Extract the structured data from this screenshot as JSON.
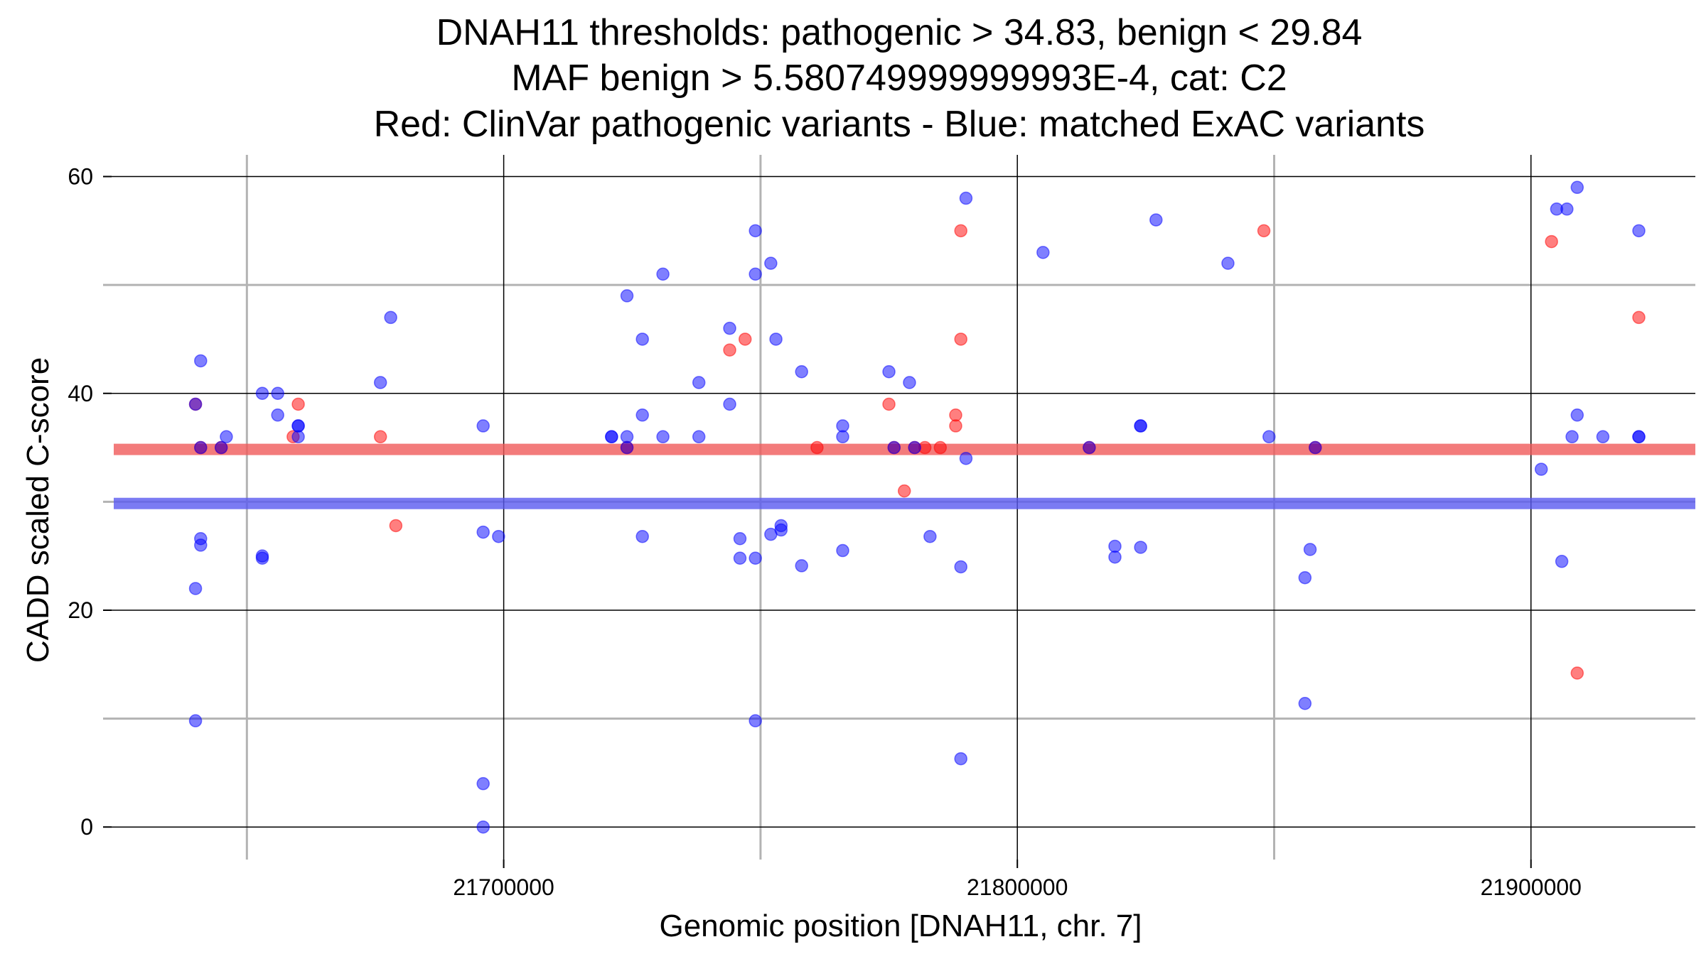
{
  "chart_data": {
    "type": "scatter",
    "title_lines": [
      "DNAH11 thresholds: pathogenic > 34.83, benign < 29.84",
      "MAF benign > 5.580749999999993E-4, cat: C2",
      "Red: ClinVar pathogenic variants - Blue: matched ExAC variants"
    ],
    "xlabel": "Genomic position [DNAH11, chr. 7]",
    "ylabel": "CADD scaled C-score",
    "xlim": [
      21622000,
      21932000
    ],
    "ylim": [
      -3,
      62
    ],
    "x_major_ticks": [
      21700000,
      21800000,
      21900000
    ],
    "x_tick_labels": [
      "21700000",
      "21800000",
      "21900000"
    ],
    "x_minor_ticks": [
      21650000,
      21750000,
      21850000
    ],
    "y_major_ticks": [
      0,
      20,
      40,
      60
    ],
    "y_tick_labels": [
      "0",
      "20",
      "40",
      "60"
    ],
    "y_minor_ticks": [
      10,
      30,
      50
    ],
    "grid": true,
    "thresholds": [
      {
        "label": "pathogenic",
        "value": 34.83,
        "color": "#f05a5a"
      },
      {
        "label": "benign",
        "value": 29.84,
        "color": "#5a5af0"
      }
    ],
    "series": [
      {
        "name": "ClinVar pathogenic variants",
        "color": "#ff0000",
        "points": [
          [
            21640000,
            39
          ],
          [
            21641000,
            35
          ],
          [
            21645000,
            35
          ],
          [
            21659000,
            36
          ],
          [
            21660000,
            39
          ],
          [
            21676000,
            36
          ],
          [
            21679000,
            27.8
          ],
          [
            21724000,
            35
          ],
          [
            21744000,
            44
          ],
          [
            21747000,
            45
          ],
          [
            21761000,
            35
          ],
          [
            21775000,
            39
          ],
          [
            21776000,
            35
          ],
          [
            21778000,
            31
          ],
          [
            21780000,
            35
          ],
          [
            21782000,
            35
          ],
          [
            21785000,
            35
          ],
          [
            21788000,
            38
          ],
          [
            21788000,
            37
          ],
          [
            21789000,
            55
          ],
          [
            21789000,
            45
          ],
          [
            21814000,
            35
          ],
          [
            21848000,
            55
          ],
          [
            21858000,
            35
          ],
          [
            21904000,
            54
          ],
          [
            21909000,
            14.2
          ],
          [
            21921000,
            47
          ]
        ]
      },
      {
        "name": "matched ExAC variants",
        "color": "#0000ff",
        "points": [
          [
            21640000,
            39
          ],
          [
            21641000,
            43
          ],
          [
            21641000,
            35
          ],
          [
            21641000,
            26.6
          ],
          [
            21641000,
            26
          ],
          [
            21640000,
            22
          ],
          [
            21640000,
            9.8
          ],
          [
            21646000,
            36
          ],
          [
            21645000,
            35
          ],
          [
            21653000,
            40
          ],
          [
            21653000,
            25
          ],
          [
            21653000,
            24.8
          ],
          [
            21656000,
            40
          ],
          [
            21656000,
            38
          ],
          [
            21660000,
            37
          ],
          [
            21660000,
            36
          ],
          [
            21660000,
            37
          ],
          [
            21676000,
            41
          ],
          [
            21678000,
            47
          ],
          [
            21696000,
            37
          ],
          [
            21696000,
            27.2
          ],
          [
            21696000,
            4
          ],
          [
            21696000,
            0
          ],
          [
            21699000,
            26.8
          ],
          [
            21721000,
            36
          ],
          [
            21721000,
            36
          ],
          [
            21724000,
            49
          ],
          [
            21724000,
            36
          ],
          [
            21724000,
            35
          ],
          [
            21727000,
            45
          ],
          [
            21727000,
            38
          ],
          [
            21727000,
            26.8
          ],
          [
            21731000,
            51
          ],
          [
            21731000,
            36
          ],
          [
            21738000,
            41
          ],
          [
            21738000,
            36
          ],
          [
            21744000,
            46
          ],
          [
            21744000,
            39
          ],
          [
            21746000,
            26.6
          ],
          [
            21746000,
            24.8
          ],
          [
            21749000,
            55
          ],
          [
            21749000,
            51
          ],
          [
            21749000,
            24.8
          ],
          [
            21749000,
            9.8
          ],
          [
            21752000,
            52
          ],
          [
            21752000,
            27
          ],
          [
            21753000,
            45
          ],
          [
            21754000,
            27.8
          ],
          [
            21754000,
            27.4
          ],
          [
            21758000,
            42
          ],
          [
            21758000,
            24.1
          ],
          [
            21766000,
            37
          ],
          [
            21766000,
            36
          ],
          [
            21766000,
            25.5
          ],
          [
            21775000,
            42
          ],
          [
            21776000,
            35
          ],
          [
            21779000,
            41
          ],
          [
            21780000,
            35
          ],
          [
            21783000,
            26.8
          ],
          [
            21789000,
            24
          ],
          [
            21789000,
            6.3
          ],
          [
            21790000,
            58
          ],
          [
            21790000,
            34
          ],
          [
            21805000,
            53
          ],
          [
            21814000,
            35
          ],
          [
            21819000,
            25.9
          ],
          [
            21819000,
            24.9
          ],
          [
            21824000,
            37
          ],
          [
            21824000,
            25.8
          ],
          [
            21824000,
            37
          ],
          [
            21827000,
            56
          ],
          [
            21841000,
            52
          ],
          [
            21849000,
            36
          ],
          [
            21857000,
            25.6
          ],
          [
            21856000,
            23
          ],
          [
            21856000,
            11.4
          ],
          [
            21858000,
            35
          ],
          [
            21902000,
            33
          ],
          [
            21905000,
            57
          ],
          [
            21906000,
            24.5
          ],
          [
            21907000,
            57
          ],
          [
            21909000,
            59
          ],
          [
            21909000,
            38
          ],
          [
            21908000,
            36
          ],
          [
            21914000,
            36
          ],
          [
            21921000,
            55
          ],
          [
            21921000,
            36
          ],
          [
            21921000,
            36
          ]
        ]
      }
    ]
  }
}
